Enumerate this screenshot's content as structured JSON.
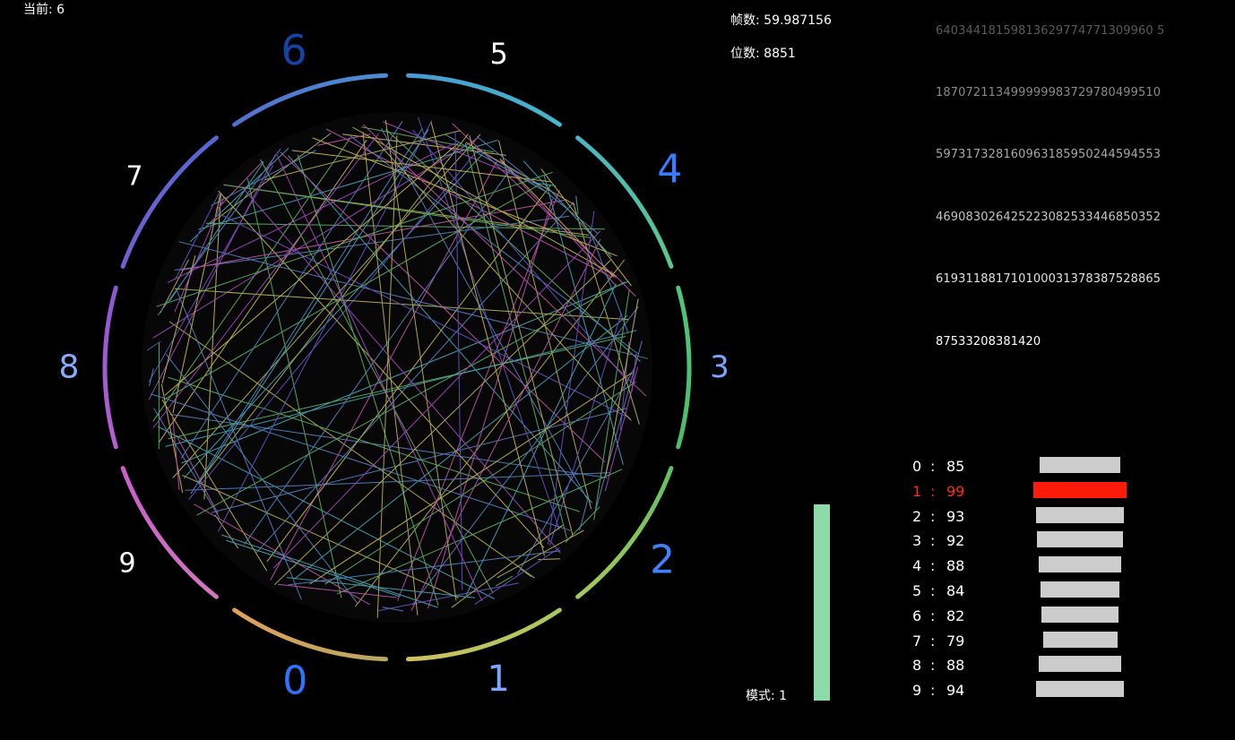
{
  "status": {
    "current": "当前: 6",
    "fps": "帧数: 59.987156",
    "digit_count": "位数: 8851",
    "mode": "模式: 1"
  },
  "pi_lines": [
    "64034418159813629774771309960 5",
    "187072113499999983729780499510",
    "597317328160963185950244594553",
    "469083026425223082533446850352",
    "619311881710100031378387528865",
    "87533208381420"
  ],
  "mode_level": 1.0,
  "colors": {
    "background": "#000000",
    "mode_bar": "#8bdca8",
    "histogram_bar": "#cccccc",
    "histogram_active": "#ff1a0a",
    "label_blue": "#3d7fff"
  },
  "ring": {
    "labels": [
      "0",
      "1",
      "2",
      "3",
      "4",
      "5",
      "6",
      "7",
      "8",
      "9"
    ],
    "label_colors": [
      "#2f74ff",
      "#7ea8ff",
      "#3d82ff",
      "#7aa6ff",
      "#3a7cff",
      "#ffffff",
      "#1544a8",
      "#ffffff",
      "#86acff",
      "#ffffff"
    ],
    "segment_colors": [
      [
        "#e1a05a",
        "#b9a860"
      ],
      [
        "#d2c060",
        "#a8c85c"
      ],
      [
        "#a8c85c",
        "#60c060"
      ],
      [
        "#4cbe6a",
        "#52c478"
      ],
      [
        "#58c88a",
        "#4ab4c4"
      ],
      [
        "#44b8cc",
        "#4a9ad0"
      ],
      [
        "#4a8ed0",
        "#5270cc"
      ],
      [
        "#5468d0",
        "#7060d0"
      ],
      [
        "#8a58d2",
        "#b85ed0"
      ],
      [
        "#c85ecc",
        "#d276c0"
      ]
    ]
  },
  "histogram": {
    "active_index": 1,
    "rows": [
      {
        "digit": "0",
        "count": "85",
        "value": 85
      },
      {
        "digit": "1",
        "count": "99",
        "value": 99
      },
      {
        "digit": "2",
        "count": "93",
        "value": 93
      },
      {
        "digit": "3",
        "count": "92",
        "value": 92
      },
      {
        "digit": "4",
        "count": "88",
        "value": 88
      },
      {
        "digit": "5",
        "count": "84",
        "value": 84
      },
      {
        "digit": "6",
        "count": "82",
        "value": 82
      },
      {
        "digit": "7",
        "count": "79",
        "value": 79
      },
      {
        "digit": "8",
        "count": "88",
        "value": 88
      },
      {
        "digit": "9",
        "count": "94",
        "value": 94
      }
    ],
    "colon": ":"
  }
}
